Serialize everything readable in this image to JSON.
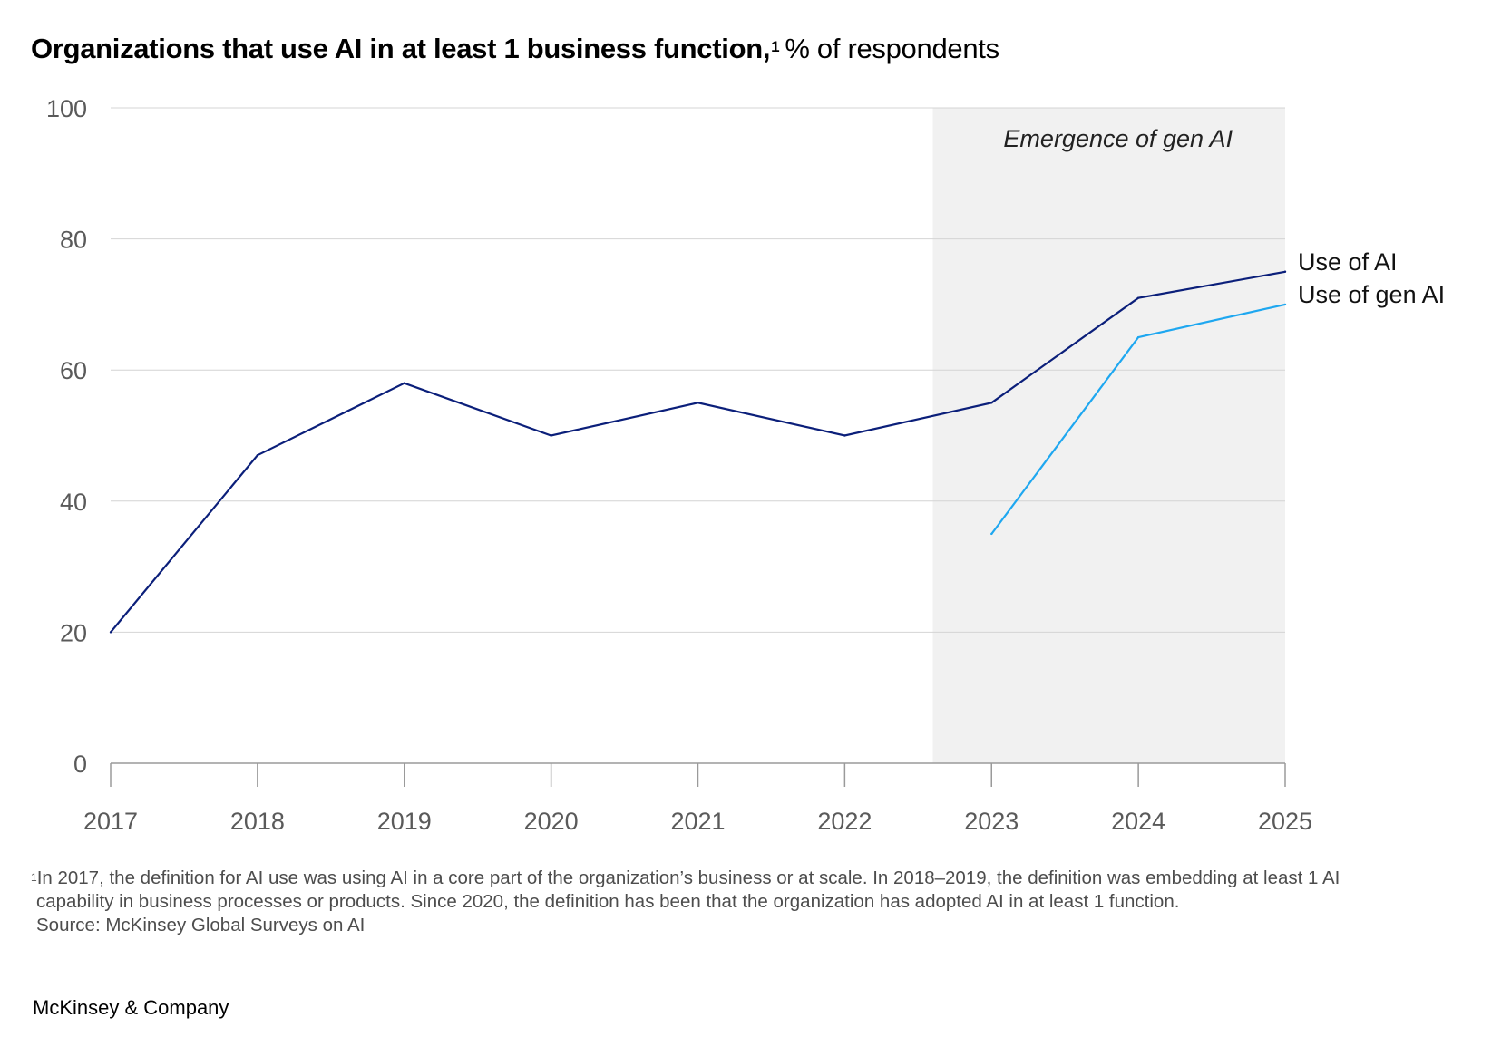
{
  "title": {
    "main": "Organizations that use AI in at least 1 business function,",
    "footnote_marker": "1",
    "unit": "% of respondents"
  },
  "chart_data": {
    "type": "line",
    "x": [
      "2017",
      "2018",
      "2019",
      "2020",
      "2021",
      "2022",
      "2023",
      "2024",
      "2025"
    ],
    "ylim": [
      0,
      100
    ],
    "y_ticks": [
      "0",
      "20",
      "40",
      "60",
      "80",
      "100"
    ],
    "grid": true,
    "series": [
      {
        "name": "Use of AI",
        "values": [
          20,
          47,
          58,
          50,
          55,
          50,
          55,
          71,
          75
        ],
        "color": "#0b1f7a"
      },
      {
        "name": "Use of gen AI",
        "values": [
          null,
          null,
          null,
          null,
          null,
          null,
          35,
          65,
          70
        ],
        "color": "#1ea7f0"
      }
    ],
    "annotation": {
      "text": "Emergence of gen AI",
      "x_from": "2022.6",
      "x_to": "2025",
      "fill": "#f1f1f1"
    }
  },
  "footnote": {
    "marker": "1",
    "line1": "In 2017, the definition for AI use was using AI in a core part of the organization’s business or at scale. In 2018–2019, the definition was embedding at least 1 AI",
    "line2": "capability in business processes or products. Since 2020, the definition has been that the organization has adopted AI in at least 1 function.",
    "source": "Source: McKinsey Global Surveys on AI"
  },
  "brand": "McKinsey & Company"
}
